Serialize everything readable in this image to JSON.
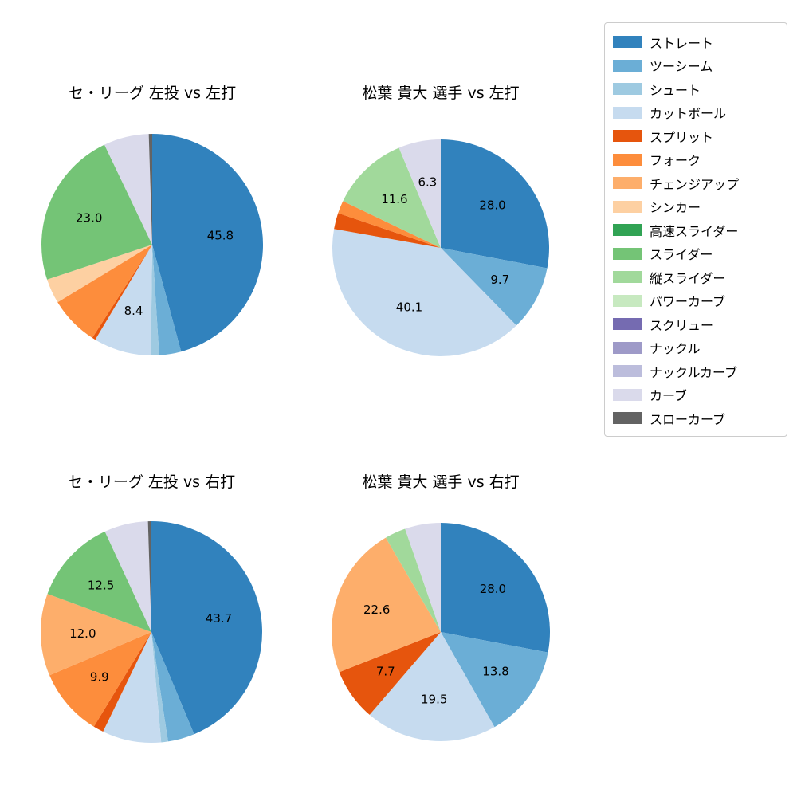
{
  "colors": {
    "background": "#ffffff",
    "title_text": "#000000",
    "percentage_label_text": "#000000",
    "legend_border": "#cccccc"
  },
  "legend": {
    "position": "upper right",
    "items": [
      {
        "label": "ストレート",
        "color": "#3182bd"
      },
      {
        "label": "ツーシーム",
        "color": "#6baed6"
      },
      {
        "label": "シュート",
        "color": "#9ecae1"
      },
      {
        "label": "カットボール",
        "color": "#c6dbef"
      },
      {
        "label": "スプリット",
        "color": "#e6550d"
      },
      {
        "label": "フォーク",
        "color": "#fd8d3c"
      },
      {
        "label": "チェンジアップ",
        "color": "#fdae6b"
      },
      {
        "label": "シンカー",
        "color": "#fdd0a2"
      },
      {
        "label": "高速スライダー",
        "color": "#31a354"
      },
      {
        "label": "スライダー",
        "color": "#74c476"
      },
      {
        "label": "縦スライダー",
        "color": "#a1d99b"
      },
      {
        "label": "パワーカーブ",
        "color": "#c7e9c0"
      },
      {
        "label": "スクリュー",
        "color": "#756bb1"
      },
      {
        "label": "ナックル",
        "color": "#9e9ac8"
      },
      {
        "label": "ナックルカーブ",
        "color": "#bcbddc"
      },
      {
        "label": "カーブ",
        "color": "#dadaeb"
      },
      {
        "label": "スローカーブ",
        "color": "#636363"
      }
    ]
  },
  "chart_data": [
    {
      "type": "pie",
      "title": "セ・リーグ 左投 vs 左打",
      "start": "top",
      "direction": "clockwise",
      "slices": [
        {
          "name": "ストレート",
          "value": 45.8,
          "label": "45.8"
        },
        {
          "name": "ツーシーム",
          "value": 3.2,
          "label": null
        },
        {
          "name": "シュート",
          "value": 1.2,
          "label": null
        },
        {
          "name": "カットボール",
          "value": 8.4,
          "label": "8.4"
        },
        {
          "name": "スプリット",
          "value": 0.5,
          "label": null
        },
        {
          "name": "フォーク",
          "value": 7.2,
          "label": null
        },
        {
          "name": "シンカー",
          "value": 3.6,
          "label": null
        },
        {
          "name": "スライダー",
          "value": 23.0,
          "label": "23.0"
        },
        {
          "name": "カーブ",
          "value": 6.6,
          "label": null
        },
        {
          "name": "スローカーブ",
          "value": 0.5,
          "label": null
        }
      ]
    },
    {
      "type": "pie",
      "title": "松葉 貴大 選手 vs 左打",
      "start": "top",
      "direction": "clockwise",
      "slices": [
        {
          "name": "ストレート",
          "value": 28.0,
          "label": "28.0"
        },
        {
          "name": "ツーシーム",
          "value": 9.7,
          "label": "9.7"
        },
        {
          "name": "カットボール",
          "value": 40.1,
          "label": "40.1"
        },
        {
          "name": "スプリット",
          "value": 2.4,
          "label": null
        },
        {
          "name": "フォーク",
          "value": 1.9,
          "label": null
        },
        {
          "name": "縦スライダー",
          "value": 11.6,
          "label": "11.6"
        },
        {
          "name": "カーブ",
          "value": 6.3,
          "label": "6.3"
        }
      ]
    },
    {
      "type": "pie",
      "title": "セ・リーグ 左投 vs 右打",
      "start": "top",
      "direction": "clockwise",
      "slices": [
        {
          "name": "ストレート",
          "value": 43.7,
          "label": "43.7"
        },
        {
          "name": "ツーシーム",
          "value": 3.9,
          "label": null
        },
        {
          "name": "シュート",
          "value": 1.0,
          "label": null
        },
        {
          "name": "カットボール",
          "value": 8.6,
          "label": null
        },
        {
          "name": "スプリット",
          "value": 1.5,
          "label": null
        },
        {
          "name": "フォーク",
          "value": 9.9,
          "label": "9.9"
        },
        {
          "name": "チェンジアップ",
          "value": 12.0,
          "label": "12.0"
        },
        {
          "name": "スライダー",
          "value": 12.5,
          "label": "12.5"
        },
        {
          "name": "カーブ",
          "value": 6.4,
          "label": null
        },
        {
          "name": "スローカーブ",
          "value": 0.5,
          "label": null
        }
      ]
    },
    {
      "type": "pie",
      "title": "松葉 貴大 選手 vs 右打",
      "start": "top",
      "direction": "clockwise",
      "slices": [
        {
          "name": "ストレート",
          "value": 28.0,
          "label": "28.0"
        },
        {
          "name": "ツーシーム",
          "value": 13.8,
          "label": "13.8"
        },
        {
          "name": "カットボール",
          "value": 19.5,
          "label": "19.5"
        },
        {
          "name": "スプリット",
          "value": 7.7,
          "label": "7.7"
        },
        {
          "name": "チェンジアップ",
          "value": 22.6,
          "label": "22.6"
        },
        {
          "name": "縦スライダー",
          "value": 3.1,
          "label": null
        },
        {
          "name": "カーブ",
          "value": 5.3,
          "label": null
        }
      ]
    }
  ]
}
